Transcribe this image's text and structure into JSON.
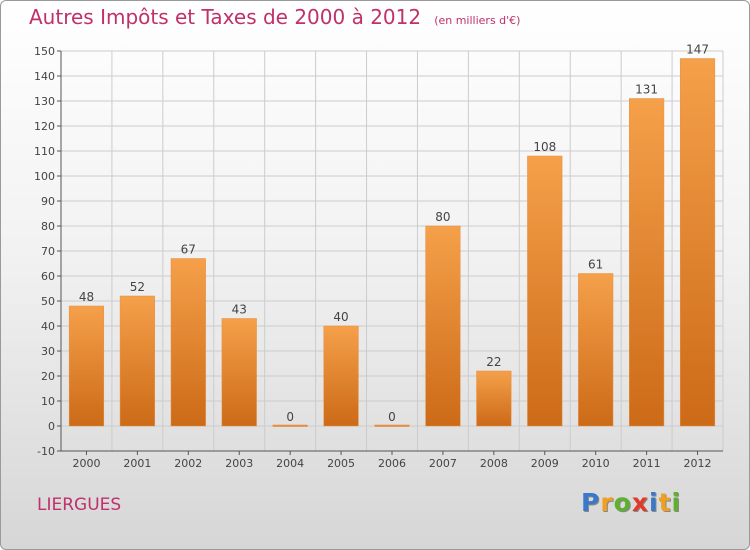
{
  "chart_data": {
    "type": "bar",
    "title": "Autres Impôts et Taxes de 2000 à 2012",
    "subtitle": "(en milliers d'€)",
    "categories": [
      "2000",
      "2001",
      "2002",
      "2003",
      "2004",
      "2005",
      "2006",
      "2007",
      "2008",
      "2009",
      "2010",
      "2011",
      "2012"
    ],
    "values": [
      48,
      52,
      67,
      43,
      0,
      40,
      0,
      80,
      22,
      108,
      61,
      131,
      147
    ],
    "ylim": [
      -10,
      150
    ],
    "yticks": [
      -10,
      0,
      10,
      20,
      30,
      40,
      50,
      60,
      70,
      80,
      90,
      100,
      110,
      120,
      130,
      140,
      150
    ],
    "grid": true,
    "bar_color": "#f0902f",
    "bar_color_dark": "#d06c18"
  },
  "location": "LIERGUES",
  "brand": {
    "letters": [
      "P",
      "r",
      "o",
      "x",
      "i",
      "t",
      "i"
    ],
    "colors": [
      "#3a78c9",
      "#f0a020",
      "#60b030",
      "#e03a2a",
      "#3a78c9",
      "#f0a020",
      "#60b030"
    ]
  },
  "colors": {
    "title": "#c0306a",
    "grid": "#cccccc",
    "axis": "#555555"
  }
}
